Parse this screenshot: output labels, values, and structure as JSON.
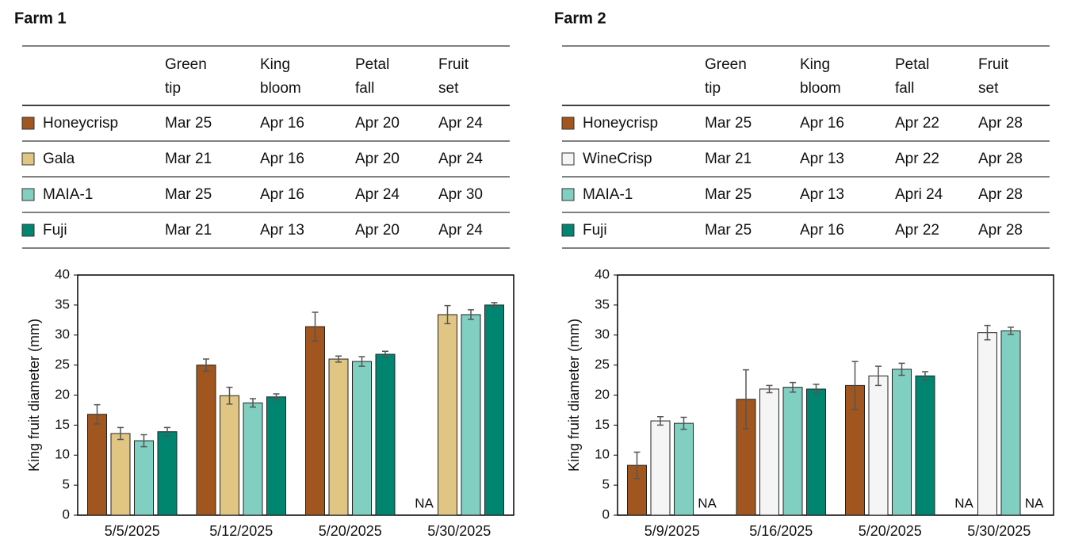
{
  "chart_data": [
    {
      "type": "bar",
      "title": "Farm 1",
      "y_label": "King fruit diameter (mm)",
      "categories": [
        "5/5/2025",
        "5/12/2025",
        "5/20/2025",
        "5/30/2025"
      ],
      "ylim": [
        0,
        40
      ],
      "yticks": [
        0,
        5,
        10,
        15,
        20,
        25,
        30,
        35,
        40
      ],
      "table_header": [
        "Green tip",
        "King bloom",
        "Petal fall",
        "Fruit set"
      ],
      "series": [
        {
          "name": "Honeycrisp",
          "color": "#a0561e",
          "values": [
            16.8,
            25.0,
            31.4,
            null
          ],
          "errors": [
            1.6,
            1.0,
            2.4,
            null
          ],
          "value_labels": [
            null,
            null,
            null,
            "NA"
          ],
          "dates": [
            "Mar 25",
            "Apr 16",
            "Apr 20",
            "Apr 24"
          ]
        },
        {
          "name": "Gala",
          "color": "#e1c683",
          "values": [
            13.6,
            19.9,
            26.0,
            33.4
          ],
          "errors": [
            1.0,
            1.4,
            0.5,
            1.5
          ],
          "dates": [
            "Mar 21",
            "Apr 16",
            "Apr 20",
            "Apr 24"
          ]
        },
        {
          "name": "MAIA-1",
          "color": "#80cfc1",
          "values": [
            12.4,
            18.7,
            25.6,
            33.4
          ],
          "errors": [
            1.0,
            0.7,
            0.8,
            0.8
          ],
          "dates": [
            "Mar 25",
            "Apr 16",
            "Apr 24",
            "Apr 30"
          ]
        },
        {
          "name": "Fuji",
          "color": "#008570",
          "values": [
            13.9,
            19.7,
            26.8,
            35.0
          ],
          "errors": [
            0.7,
            0.5,
            0.5,
            0.4
          ],
          "dates": [
            "Mar 21",
            "Apr 13",
            "Apr 20",
            "Apr 24"
          ]
        }
      ]
    },
    {
      "type": "bar",
      "title": "Farm 2",
      "y_label": "King fruit diameter (mm)",
      "categories": [
        "5/9/2025",
        "5/16/2025",
        "5/20/2025",
        "5/30/2025"
      ],
      "ylim": [
        0,
        40
      ],
      "yticks": [
        0,
        5,
        10,
        15,
        20,
        25,
        30,
        35,
        40
      ],
      "table_header": [
        "Green tip",
        "King bloom",
        "Petal fall",
        "Fruit set"
      ],
      "series": [
        {
          "name": "Honeycrisp",
          "color": "#a0561e",
          "values": [
            8.3,
            19.3,
            21.6,
            null
          ],
          "errors": [
            2.2,
            4.9,
            4.0,
            null
          ],
          "value_labels": [
            null,
            null,
            null,
            "NA"
          ],
          "dates": [
            "Mar 25",
            "Apr 16",
            "Apr 22",
            "Apr 28"
          ]
        },
        {
          "name": "WineCrisp",
          "color": "#f5f5f5",
          "values": [
            15.7,
            21.0,
            23.2,
            30.4
          ],
          "errors": [
            0.7,
            0.6,
            1.6,
            1.2
          ],
          "dates": [
            "Mar 21",
            "Apr 13",
            "Apr 22",
            "Apr 28"
          ]
        },
        {
          "name": "MAIA-1",
          "color": "#80cfc1",
          "values": [
            15.3,
            21.3,
            24.3,
            30.7
          ],
          "errors": [
            1.0,
            0.8,
            1.0,
            0.6
          ],
          "dates": [
            "Mar 25",
            "Apr 13",
            "Apri 24",
            "Apr 28"
          ]
        },
        {
          "name": "Fuji",
          "color": "#008570",
          "values": [
            null,
            21.0,
            23.2,
            null
          ],
          "errors": [
            null,
            0.8,
            0.7,
            null
          ],
          "value_labels": [
            "NA",
            null,
            null,
            "NA"
          ],
          "dates": [
            "Mar 25",
            "Apr 16",
            "Apr 22",
            "Apr 28"
          ]
        }
      ]
    }
  ]
}
